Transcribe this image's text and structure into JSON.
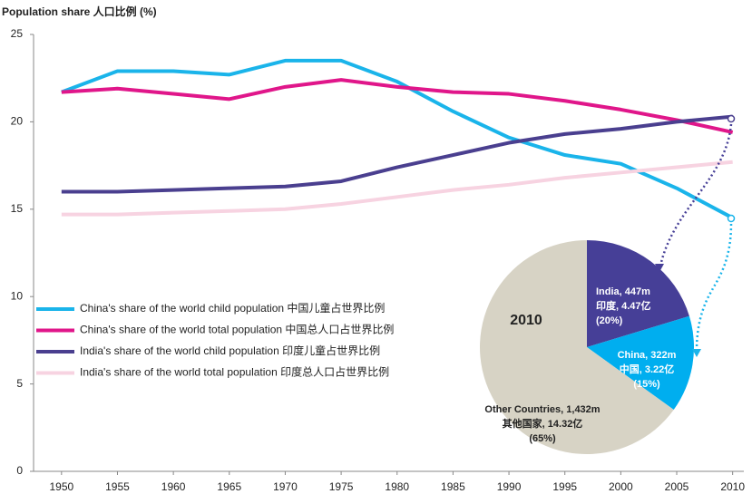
{
  "chart_data": [
    {
      "type": "line",
      "title": "Population share 人口比例 (%)",
      "x": [
        1950,
        1955,
        1960,
        1965,
        1970,
        1975,
        1980,
        1985,
        1990,
        1995,
        2000,
        2005,
        2010
      ],
      "xlim": [
        1947.5,
        2011
      ],
      "xticks": [
        1950,
        1955,
        1960,
        1965,
        1970,
        1975,
        1980,
        1985,
        1990,
        1995,
        2000,
        2005,
        2010
      ],
      "ylim": [
        0,
        25
      ],
      "yticks": [
        0,
        5,
        10,
        15,
        20,
        25
      ],
      "series": [
        {
          "name": "China's share of the world child population 中国儿童占世界比例",
          "color": "#1ab4ea",
          "values": [
            21.7,
            22.9,
            22.9,
            22.7,
            23.5,
            23.5,
            22.3,
            20.6,
            19.1,
            18.1,
            17.6,
            16.2,
            14.5
          ]
        },
        {
          "name": "China's share of the world total population 中国总人口占世界比例",
          "color": "#e0168a",
          "values": [
            21.7,
            21.9,
            21.6,
            21.3,
            22.0,
            22.4,
            22.0,
            21.7,
            21.6,
            21.2,
            20.7,
            20.1,
            19.4
          ]
        },
        {
          "name": "India's share of the world child population 印度儿童占世界比例",
          "color": "#4a3f8f",
          "values": [
            16.0,
            16.0,
            16.1,
            16.2,
            16.3,
            16.6,
            17.4,
            18.1,
            18.8,
            19.3,
            19.6,
            20.0,
            20.3
          ]
        },
        {
          "name": "India's share of the world total population 印度总人口占世界比例",
          "color": "#f7d3e1",
          "values": [
            14.7,
            14.7,
            14.8,
            14.9,
            15.0,
            15.3,
            15.7,
            16.1,
            16.4,
            16.8,
            17.1,
            17.4,
            17.7
          ]
        }
      ]
    },
    {
      "type": "pie",
      "title": "2010",
      "values": [
        447,
        322,
        1432
      ],
      "colors": [
        "#463f97",
        "#00aeef",
        "#d7d3c5"
      ],
      "value_labels": [
        [
          "India, 447m",
          "印度, 4.47亿",
          "(20%)"
        ],
        [
          "China, 322m",
          "中国, 3.22亿",
          "(15%)"
        ],
        [
          "Other Countries,  1,432m",
          "其他国家, 14.32亿",
          "(65%)"
        ]
      ]
    }
  ]
}
